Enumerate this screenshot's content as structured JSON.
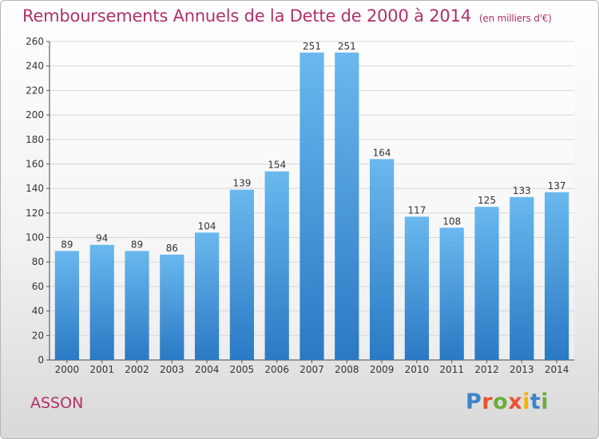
{
  "title": "Remboursements Annuels de la Dette de 2000 à 2014",
  "unit_note": "(en milliers d'€)",
  "place": "ASSON",
  "brand": {
    "letters": [
      "P",
      "r",
      "o",
      "x",
      "i",
      "t",
      "i"
    ],
    "colors": [
      "#3a84c8",
      "#e8532e",
      "#6cae3c",
      "#e8532e",
      "#f4b400",
      "#3a84c8",
      "#6cae3c"
    ]
  },
  "colors": {
    "title": "#b0306a",
    "bar_top": "#6ab8ee",
    "bar_bottom": "#2a79c4",
    "grid": "#d8d8d8"
  },
  "chart_data": {
    "type": "bar",
    "title": "Remboursements Annuels de la Dette de 2000 à 2014",
    "xlabel": "",
    "ylabel": "",
    "categories": [
      "2000",
      "2001",
      "2002",
      "2003",
      "2004",
      "2005",
      "2006",
      "2007",
      "2008",
      "2009",
      "2010",
      "2011",
      "2012",
      "2013",
      "2014"
    ],
    "values": [
      89,
      94,
      89,
      86,
      104,
      139,
      154,
      251,
      251,
      164,
      117,
      108,
      125,
      133,
      137
    ],
    "ylim": [
      0,
      260
    ],
    "yticks": [
      0,
      20,
      40,
      60,
      80,
      100,
      120,
      140,
      160,
      180,
      200,
      220,
      240,
      260
    ],
    "grid": true,
    "data_labels": true
  }
}
